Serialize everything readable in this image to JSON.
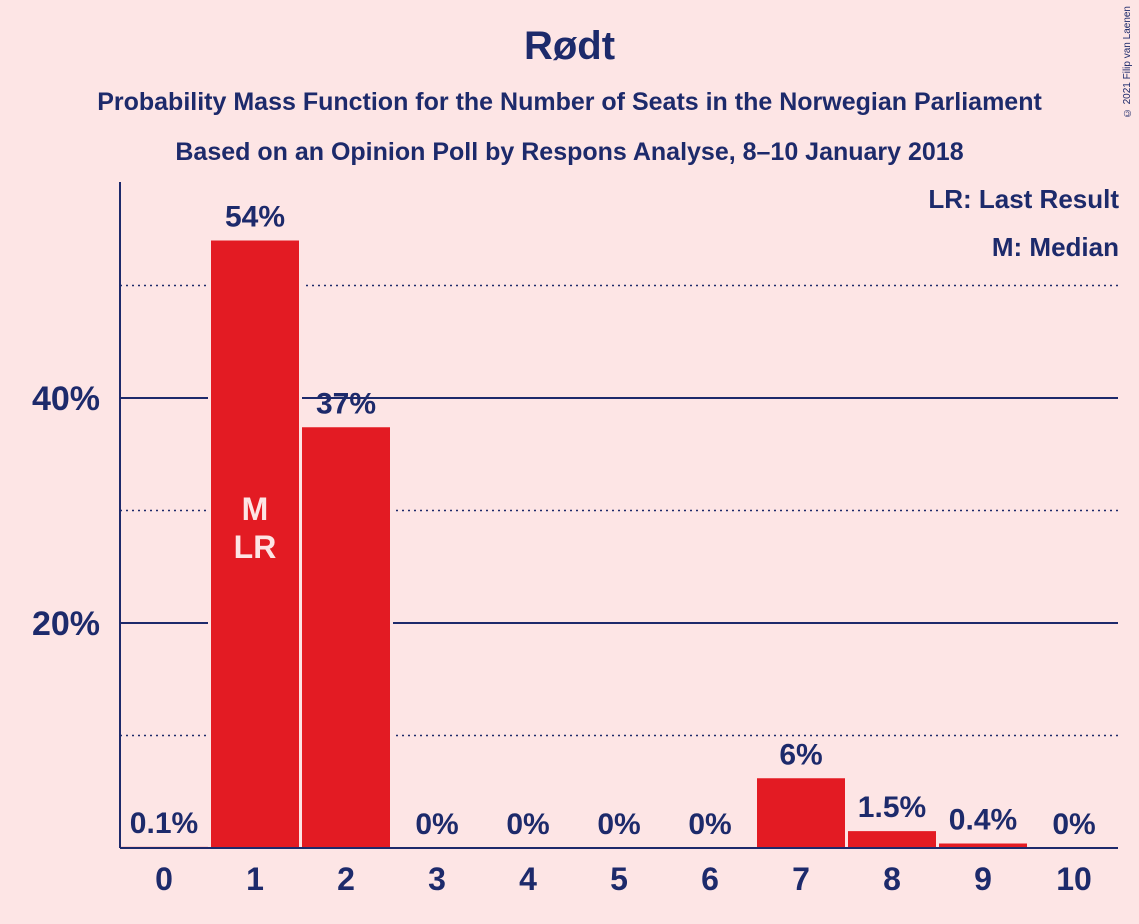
{
  "chart_data": {
    "type": "bar",
    "title": "Rødt",
    "subtitle": "Probability Mass Function for the Number of Seats in the Norwegian Parliament",
    "subtitle2": "Based on an Opinion Poll by Respons Analyse, 8–10 January 2018",
    "categories": [
      "0",
      "1",
      "2",
      "3",
      "4",
      "5",
      "6",
      "7",
      "8",
      "9",
      "10"
    ],
    "values": [
      0.1,
      54,
      37.4,
      0,
      0,
      0,
      0,
      6.2,
      1.5,
      0.4,
      0
    ],
    "value_labels": [
      "0.1%",
      "54%",
      "37%",
      "0%",
      "0%",
      "0%",
      "0%",
      "6%",
      "1.5%",
      "0.4%",
      "0%"
    ],
    "yticks": [
      20,
      40
    ],
    "ytick_labels": [
      "20%",
      "40%"
    ],
    "minor_gridlines": [
      10,
      30,
      50
    ],
    "ylim": [
      0,
      59
    ],
    "bar_annotations": [
      {
        "category": "1",
        "lines": [
          "M",
          "LR"
        ]
      }
    ],
    "legend": {
      "placement": "top-right",
      "entries": [
        "LR: Last Result",
        "M: Median"
      ]
    },
    "colors": {
      "bar": "#e31b23",
      "text": "#1d2a6b",
      "background": "#fde5e5",
      "annotation": "#fde5e5"
    }
  },
  "copyright": "© 2021 Filip van Laenen"
}
